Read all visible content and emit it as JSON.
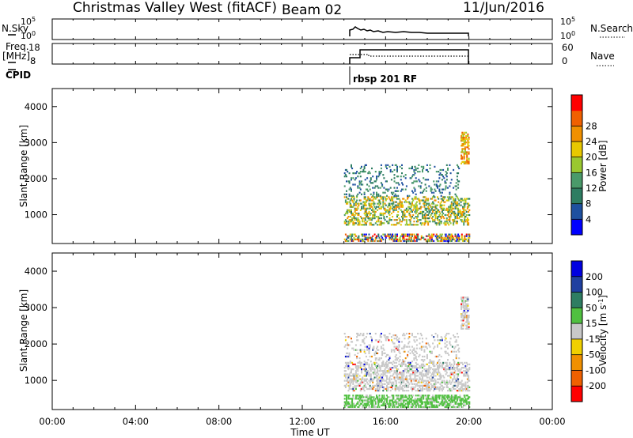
{
  "header": {
    "station": "Christmas Valley West (fitACF)",
    "beam": "Beam 02",
    "date": "11/Jun/2016"
  },
  "strip_labels": {
    "nsky": "N.Sky",
    "nsky_ticks": [
      "10^5",
      "10^0"
    ],
    "nsearch": "N.Search",
    "nsearch_ticks": [
      "10^5",
      "10^0"
    ],
    "freq_line1": "Freq.",
    "freq_line2": "[MHz]",
    "freq_ticks": [
      "18",
      "8"
    ],
    "nave": "Nave",
    "nave_ticks": [
      "60",
      "0"
    ],
    "cpid": "CPID",
    "cpid_text": "rbsp 201 RF"
  },
  "colors": {
    "grey_scatter": "#c8c8c8",
    "power_scale": [
      "#0000ff",
      "#1e50a0",
      "#2e7d62",
      "#4a9a6a",
      "#9ac830",
      "#e8c800",
      "#f09000",
      "#f06000",
      "#ff0000"
    ],
    "velocity_scale": [
      "#0000e0",
      "#2040a0",
      "#2e7d62",
      "#50c040",
      "#c8c8c8",
      "#f0d000",
      "#f09000",
      "#f06000",
      "#ff0000"
    ]
  },
  "chart_data": [
    {
      "type": "heatmap",
      "name": "power",
      "ylabel": "Slant Range [km]",
      "yticks": [
        "1000",
        "2000",
        "3000",
        "4000"
      ],
      "ylim": [
        200,
        4500
      ],
      "xlim_hours": [
        0,
        24
      ],
      "colorbar_label": "Power [dB]",
      "colorbar_ticks": [
        "4",
        "8",
        "12",
        "16",
        "20",
        "24",
        "28"
      ],
      "colorbar_range": [
        0,
        32
      ],
      "data_time_range": [
        "14:00",
        "20:00"
      ],
      "regions": [
        {
          "t": [
            14.0,
            20.0
          ],
          "r": [
            250,
            450
          ],
          "level": "mixed"
        },
        {
          "t": [
            14.0,
            20.0
          ],
          "r": [
            700,
            1500
          ],
          "level": "12-20"
        },
        {
          "t": [
            14.0,
            19.5
          ],
          "r": [
            1500,
            2400
          ],
          "level": "8-12"
        },
        {
          "t": [
            19.6,
            20.0
          ],
          "r": [
            2400,
            3300
          ],
          "level": "20-28"
        }
      ]
    },
    {
      "type": "heatmap",
      "name": "velocity",
      "ylabel": "Slant Range [km]",
      "yticks": [
        "1000",
        "2000",
        "3000",
        "4000"
      ],
      "ylim": [
        200,
        4500
      ],
      "xlim_hours": [
        0,
        24
      ],
      "colorbar_label": "Velocity [m s^-1]",
      "colorbar_ticks": [
        "200",
        "100",
        "50",
        "15",
        "-15",
        "-50",
        "-100",
        "-200"
      ],
      "data_time_range": [
        "14:00",
        "20:00"
      ],
      "regions": [
        {
          "t": [
            14.0,
            20.0
          ],
          "r": [
            250,
            600
          ],
          "level": "15-50"
        },
        {
          "t": [
            14.0,
            20.0
          ],
          "r": [
            700,
            1500
          ],
          "level": "ground"
        },
        {
          "t": [
            14.0,
            19.5
          ],
          "r": [
            1500,
            2300
          ],
          "level": "ground"
        },
        {
          "t": [
            19.6,
            20.0
          ],
          "r": [
            2400,
            3300
          ],
          "level": "ground"
        }
      ]
    }
  ],
  "x_axis": {
    "ticks": [
      "00:00",
      "04:00",
      "08:00",
      "12:00",
      "16:00",
      "20:00",
      "00:00"
    ],
    "label": "Time UT"
  }
}
